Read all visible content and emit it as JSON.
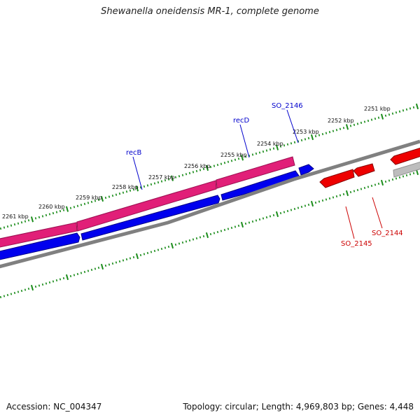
{
  "title": "Shewanella oneidensis MR-1, complete genome",
  "footer": {
    "accession": "Accession: NC_004347",
    "summary": "Topology: circular; Length: 4,969,803 bp; Genes: 4,448"
  },
  "ticks": [
    "2251 kbp",
    "2252 kbp",
    "2253 kbp",
    "2254 kbp",
    "2255 kbp",
    "2256 kbp",
    "2257 kbp",
    "2258 kbp",
    "2259 kbp",
    "2260 kbp",
    "2261 kbp"
  ],
  "gene_labels": [
    {
      "id": "so2146",
      "text": "SO_2146",
      "color": "#0000cc"
    },
    {
      "id": "recd",
      "text": "recD",
      "color": "#0000cc"
    },
    {
      "id": "recb",
      "text": "recB",
      "color": "#0000cc"
    },
    {
      "id": "so2145",
      "text": "SO_2145",
      "color": "#cc0000"
    },
    {
      "id": "so2144",
      "text": "SO_2144",
      "color": "#cc0000"
    }
  ],
  "colors": {
    "cds_forward": "#e11f78",
    "gene_forward": "#0000ee",
    "gene_reverse": "#ee0000",
    "gene_other": "#bdbdbd",
    "backbone": "#808080",
    "ticks": "#1a8c1a"
  }
}
